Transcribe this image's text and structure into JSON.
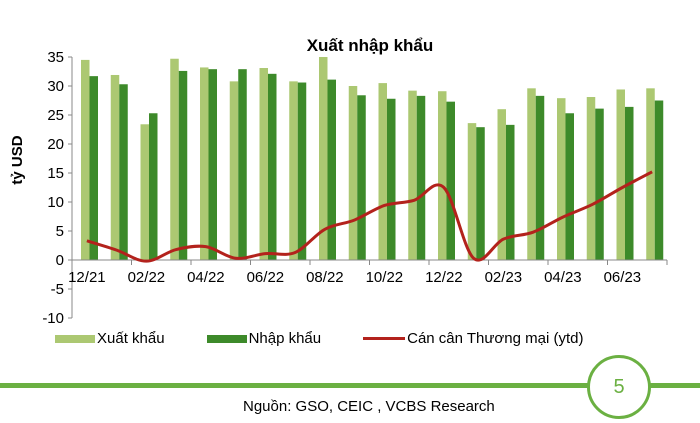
{
  "page_number": "5",
  "source": "Nguồn: GSO, CEIC , VCBS Research",
  "colors": {
    "export": "#acc872",
    "import": "#3d8a2a",
    "balance": "#b3221c",
    "accent": "#6bb042"
  },
  "chart_data": {
    "type": "bar",
    "title": "Xuất nhập khẩu",
    "ylabel": "tỷ USD",
    "xlabel": "",
    "ylim": [
      -10,
      35
    ],
    "yticks": [
      -10,
      -5,
      0,
      5,
      10,
      15,
      20,
      25,
      30,
      35
    ],
    "grid": false,
    "legend_position": "bottom",
    "categories": [
      "12/21",
      "01/22",
      "02/22",
      "03/22",
      "04/22",
      "05/22",
      "06/22",
      "07/22",
      "08/22",
      "09/22",
      "10/22",
      "11/22",
      "12/22",
      "01/23",
      "02/23",
      "03/23",
      "04/23",
      "05/23",
      "06/23",
      "07/23"
    ],
    "xtick_labels": [
      "12/21",
      "02/22",
      "04/22",
      "06/22",
      "08/22",
      "10/22",
      "12/22",
      "02/23",
      "04/23",
      "06/23"
    ],
    "series": [
      {
        "name": "Xuất khẩu",
        "type": "bar",
        "values": [
          34.5,
          31.9,
          23.4,
          34.7,
          33.2,
          30.8,
          33.1,
          30.8,
          35.0,
          30.0,
          30.5,
          29.2,
          29.1,
          23.6,
          26.0,
          29.6,
          27.9,
          28.1,
          29.4,
          29.6
        ]
      },
      {
        "name": "Nhập khẩu",
        "type": "bar",
        "values": [
          31.7,
          30.3,
          25.3,
          32.6,
          32.9,
          32.9,
          32.1,
          30.6,
          31.1,
          28.4,
          27.8,
          28.3,
          27.3,
          22.9,
          23.3,
          28.3,
          25.3,
          26.1,
          26.4,
          27.5
        ]
      },
      {
        "name": "Cán cân Thương mại (ytd)",
        "type": "line",
        "values": [
          3.3,
          1.7,
          -0.2,
          1.8,
          2.3,
          0.3,
          1.1,
          1.3,
          5.3,
          6.9,
          9.4,
          10.3,
          12.5,
          0.3,
          3.6,
          4.8,
          7.4,
          9.6,
          12.5,
          15.2
        ]
      }
    ]
  }
}
